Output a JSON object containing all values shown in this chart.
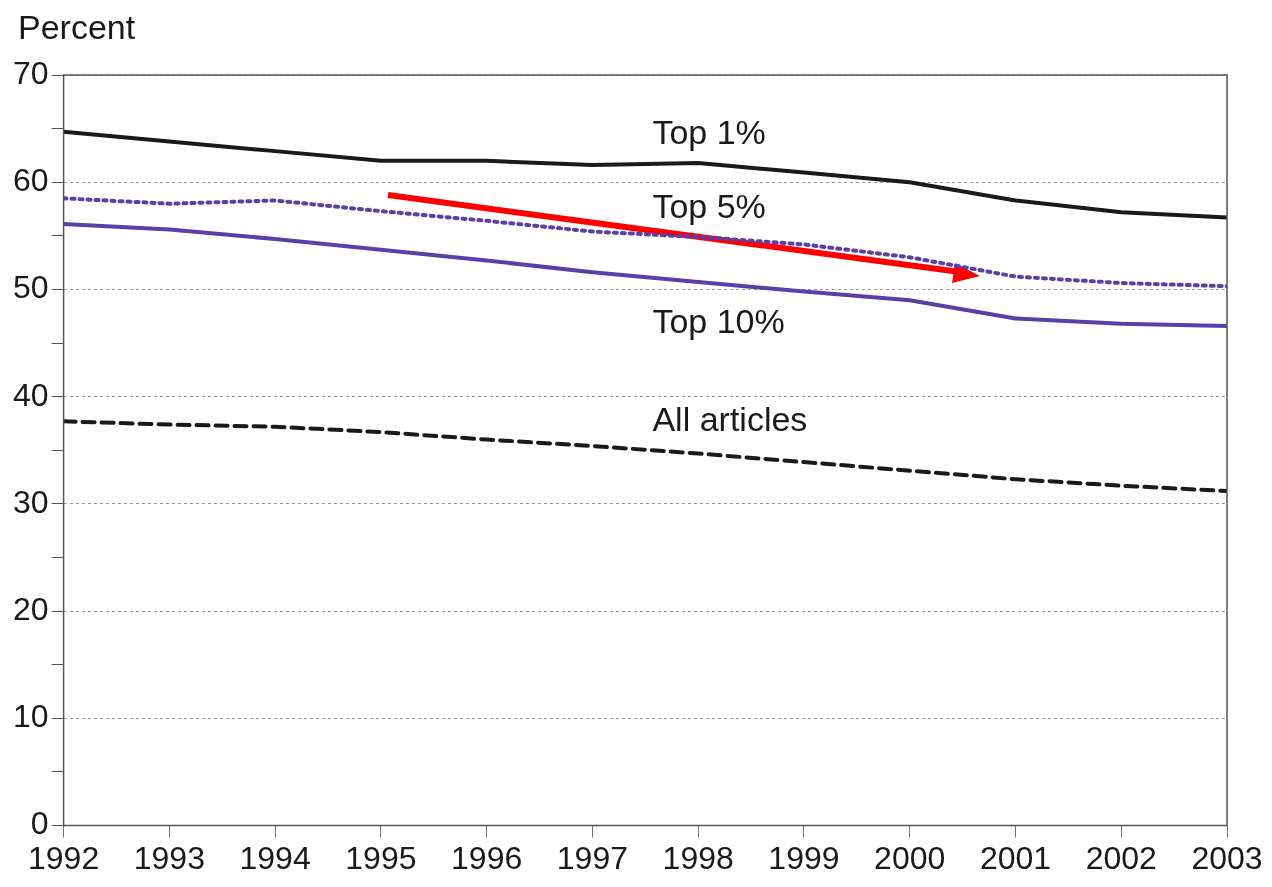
{
  "chart_data": {
    "type": "line",
    "ylabel": "Percent",
    "x": [
      1992,
      1993,
      1994,
      1995,
      1996,
      1997,
      1998,
      1999,
      2000,
      2001,
      2002,
      2003
    ],
    "series": [
      {
        "name": "Top 1%",
        "color": "#1a1a1a",
        "line_style": "solid",
        "values": [
          64.7,
          63.8,
          62.9,
          62.0,
          62.0,
          61.6,
          61.8,
          60.9,
          60.0,
          58.3,
          57.2,
          56.7
        ]
      },
      {
        "name": "Top 5%",
        "color": "#5b3fa8",
        "line_style": "dotted",
        "values": [
          58.5,
          58.0,
          58.3,
          57.3,
          56.4,
          55.4,
          54.9,
          54.2,
          53.0,
          51.2,
          50.6,
          50.3
        ]
      },
      {
        "name": "Top 10%",
        "color": "#5b3fa8",
        "line_style": "solid",
        "values": [
          56.1,
          55.6,
          54.7,
          53.7,
          52.7,
          51.6,
          50.7,
          49.8,
          49.0,
          47.3,
          46.8,
          46.6
        ]
      },
      {
        "name": "All articles",
        "color": "#1a1a1a",
        "line_style": "dashed",
        "values": [
          37.7,
          37.4,
          37.2,
          36.7,
          36.0,
          35.4,
          34.7,
          33.9,
          33.1,
          32.3,
          31.7,
          31.2
        ]
      }
    ],
    "xlim": [
      1992,
      2003
    ],
    "xticks": [
      1992,
      1993,
      1994,
      1995,
      1996,
      1997,
      1998,
      1999,
      2000,
      2001,
      2002,
      2003
    ],
    "ylim": [
      0,
      70
    ],
    "yticks": [
      0,
      {
        "value": 5,
        "label": null
      },
      10,
      {
        "value": 15,
        "label": null
      },
      20,
      {
        "value": 25,
        "label": null
      },
      30,
      {
        "value": 35,
        "label": null
      },
      40,
      {
        "value": 45,
        "label": null
      },
      50,
      {
        "value": 55,
        "label": null
      },
      60,
      {
        "value": 65,
        "label": null
      },
      70
    ],
    "grid": "y",
    "legend": false,
    "marker": "none"
  }
}
